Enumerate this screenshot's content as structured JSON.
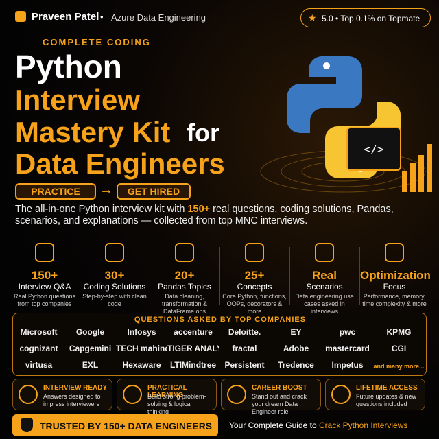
{
  "header": {
    "name": "Praveen Patel",
    "separator": "•",
    "role": "Azure Data Engineering",
    "badge": "5.0 • Top 0.1% on Topmate"
  },
  "eyebrow": "COMPLETE CODING",
  "title": {
    "line1": "Python",
    "line2": "Interview",
    "line3": "Mastery Kit",
    "line3_suffix": "for",
    "line4": "Data Engineers"
  },
  "buttons": {
    "left": "PRACTICE",
    "arrow": "→",
    "right": "GET HIRED"
  },
  "description": {
    "before": "The all-in-one Python interview kit with ",
    "highlight": "150+",
    "after": " real questions, coding solutions, Pandas, scenarios, and explanations — collected from top MNC interviews."
  },
  "stats": [
    {
      "number": "150+",
      "label": "Interview Q&A",
      "desc": "Real Python questions from top companies"
    },
    {
      "number": "30+",
      "label": "Coding Solutions",
      "desc": "Step-by-step with clean code"
    },
    {
      "number": "20+",
      "label": "Pandas Topics",
      "desc": "Data cleaning, transformation & DataFrame ops"
    },
    {
      "number": "25+",
      "label": "Concepts",
      "desc": "Core Python, functions, OOPs, decorators & more"
    },
    {
      "number": "Real",
      "label": "Scenarios",
      "desc": "Data engineering use cases asked in interviews"
    },
    {
      "number": "Optimization",
      "label": "Focus",
      "desc": "Performance, memory, time complexity & more"
    }
  ],
  "companies": {
    "heading": "QUESTIONS ASKED BY TOP COMPANIES",
    "names": [
      "Microsoft",
      "Google",
      "Infosys",
      "accenture",
      "Deloitte.",
      "EY",
      "pwc",
      "KPMG",
      "cognizant",
      "Capgemini",
      "TECH mahindra",
      "TIGER ANALYTICS",
      "fractal",
      "Adobe",
      "mastercard",
      "CGI",
      "virtusa",
      "EXL",
      "Hexaware",
      "LTIMindtree",
      "Persistent",
      "Tredence",
      "Impetus",
      "and many more..."
    ]
  },
  "features": [
    {
      "title": "INTERVIEW READY",
      "desc": "Answers designed to impress interviewers"
    },
    {
      "title": "PRACTICAL LEARNING",
      "desc": "Build strong problem-solving & logical thinking"
    },
    {
      "title": "CAREER BOOST",
      "desc": "Stand out and crack your dream Data Engineer role"
    },
    {
      "title": "LIFETIME ACCESS",
      "desc": "Future updates & new questions included"
    }
  ],
  "footer": {
    "badge": "TRUSTED BY 150+ DATA ENGINEERS",
    "lead": "Your Complete Guide to",
    "highlight": "Crack Python Interviews"
  }
}
